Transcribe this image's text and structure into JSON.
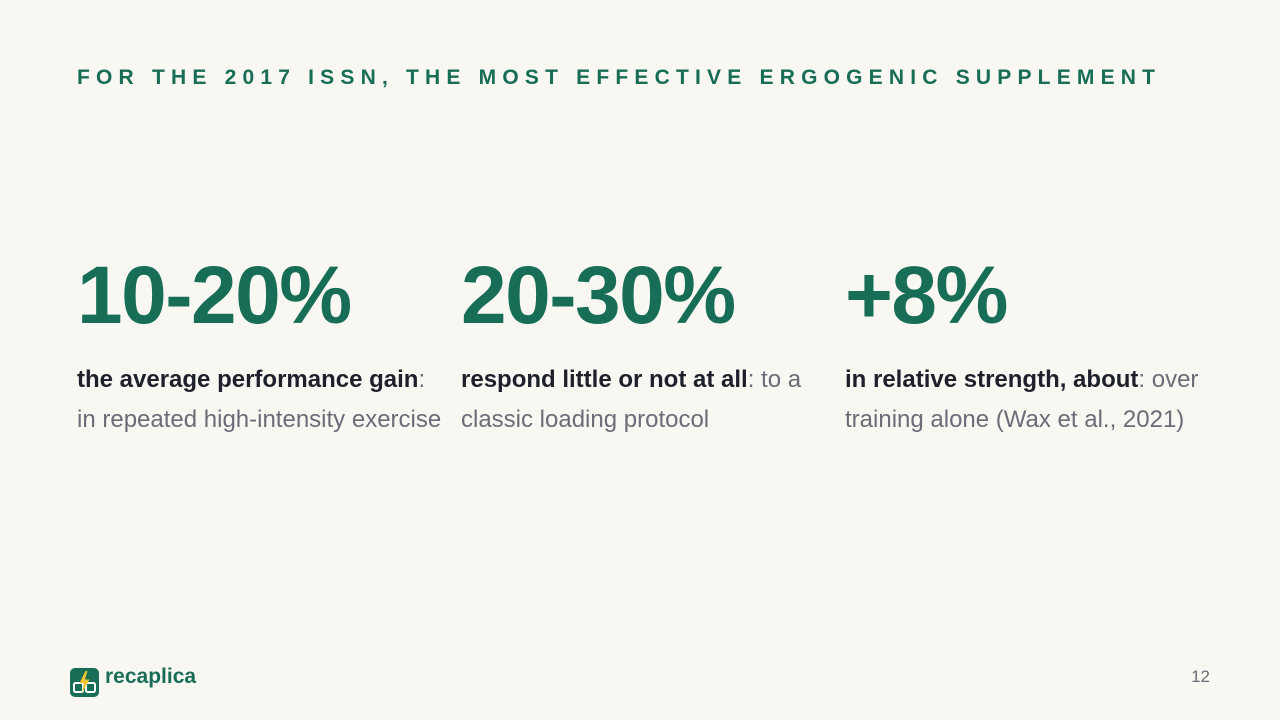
{
  "slide": {
    "headline": "FOR THE 2017 ISSN, THE MOST EFFECTIVE ERGOGENIC SUPPLEMENT",
    "page_number": "12"
  },
  "stats": [
    {
      "value": "10-20%",
      "emphasis": "the average performance gain",
      "separator": ":",
      "detail": " in repeated high-intensity exercise"
    },
    {
      "value": "20-30%",
      "emphasis": "respond little or not at all",
      "separator": ":",
      "detail": " to a classic loading protocol"
    },
    {
      "value": "+8%",
      "emphasis": "in relative strength, about",
      "separator": ":",
      "detail": " over training alone (Wax et al., 2021)"
    }
  ],
  "brand": {
    "name": "recaplica",
    "icon": "recaplica-logo-icon"
  },
  "colors": {
    "background": "#f8f7f2",
    "accent": "#186d56",
    "text_strong": "#1e212b",
    "text_muted": "#6a6d78",
    "logo_bolt": "#f2c230"
  }
}
